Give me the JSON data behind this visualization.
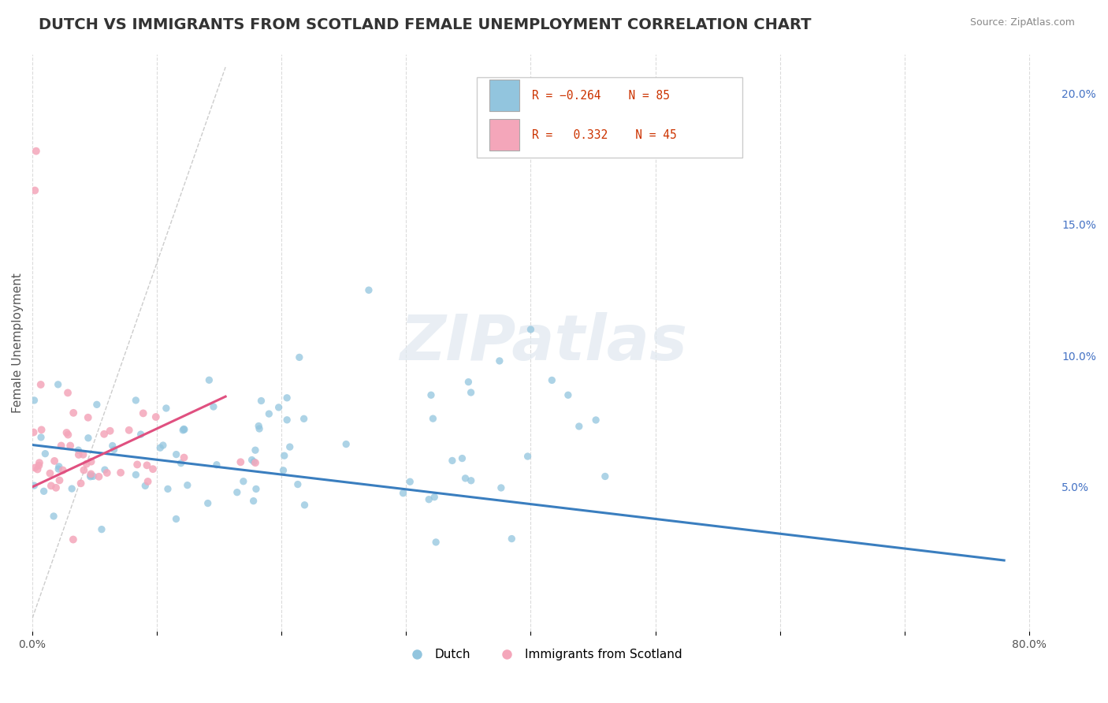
{
  "title": "DUTCH VS IMMIGRANTS FROM SCOTLAND FEMALE UNEMPLOYMENT CORRELATION CHART",
  "source": "Source: ZipAtlas.com",
  "ylabel": "Female Unemployment",
  "xlim": [
    0.0,
    0.82
  ],
  "ylim": [
    -0.005,
    0.215
  ],
  "y_ticks_right": [
    0.05,
    0.1,
    0.15,
    0.2
  ],
  "y_tick_labels_right": [
    "5.0%",
    "10.0%",
    "15.0%",
    "20.0%"
  ],
  "watermark": "ZIPatlas",
  "dutch_color": "#92c5de",
  "scotland_color": "#f4a6ba",
  "dutch_trend_color": "#3a7ebf",
  "scotland_trend_color": "#e05080",
  "background_color": "#ffffff",
  "grid_color": "#d8d8d8",
  "title_color": "#333333",
  "title_fontsize": 14,
  "axis_fontsize": 11,
  "tick_fontsize": 10,
  "right_tick_color": "#4472c4"
}
